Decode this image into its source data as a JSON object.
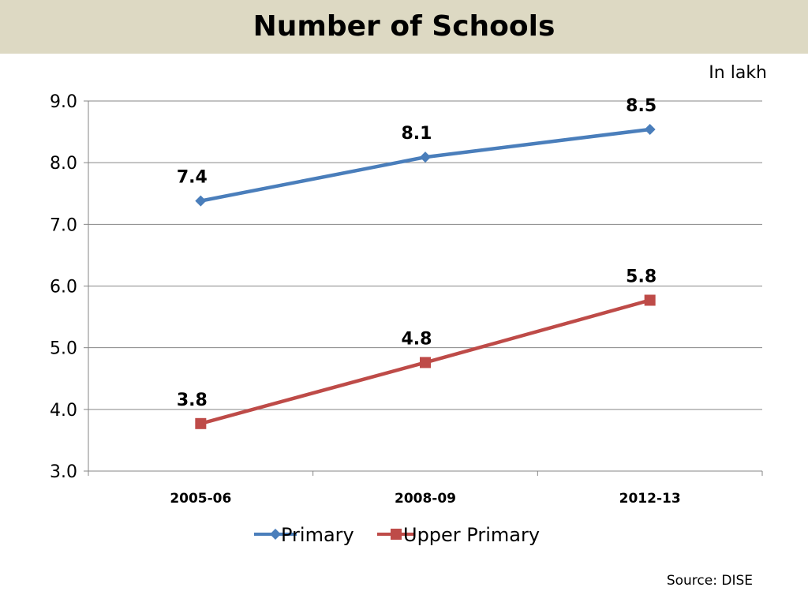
{
  "title": "Number of Schools",
  "unit_note": "In lakh",
  "source_note": "Source: DISE",
  "chart_data": {
    "type": "line",
    "title": "Number of Schools",
    "xlabel": "",
    "ylabel": "",
    "categories": [
      "2005-06",
      "2008-09",
      "2012-13"
    ],
    "ylim": [
      3.0,
      9.0
    ],
    "yticks": [
      "3.0",
      "4.0",
      "5.0",
      "6.0",
      "7.0",
      "8.0",
      "9.0"
    ],
    "grid": true,
    "legend_position": "bottom",
    "series": [
      {
        "name": "Primary",
        "values": [
          7.38,
          8.09,
          8.54
        ],
        "labels": [
          "7.4",
          "8.1",
          "8.5"
        ],
        "color": "#4a7ebb",
        "marker": "diamond"
      },
      {
        "name": "Upper Primary",
        "values": [
          3.77,
          4.76,
          5.77
        ],
        "labels": [
          "3.8",
          "4.8",
          "5.8"
        ],
        "color": "#be4b48",
        "marker": "square"
      }
    ]
  }
}
